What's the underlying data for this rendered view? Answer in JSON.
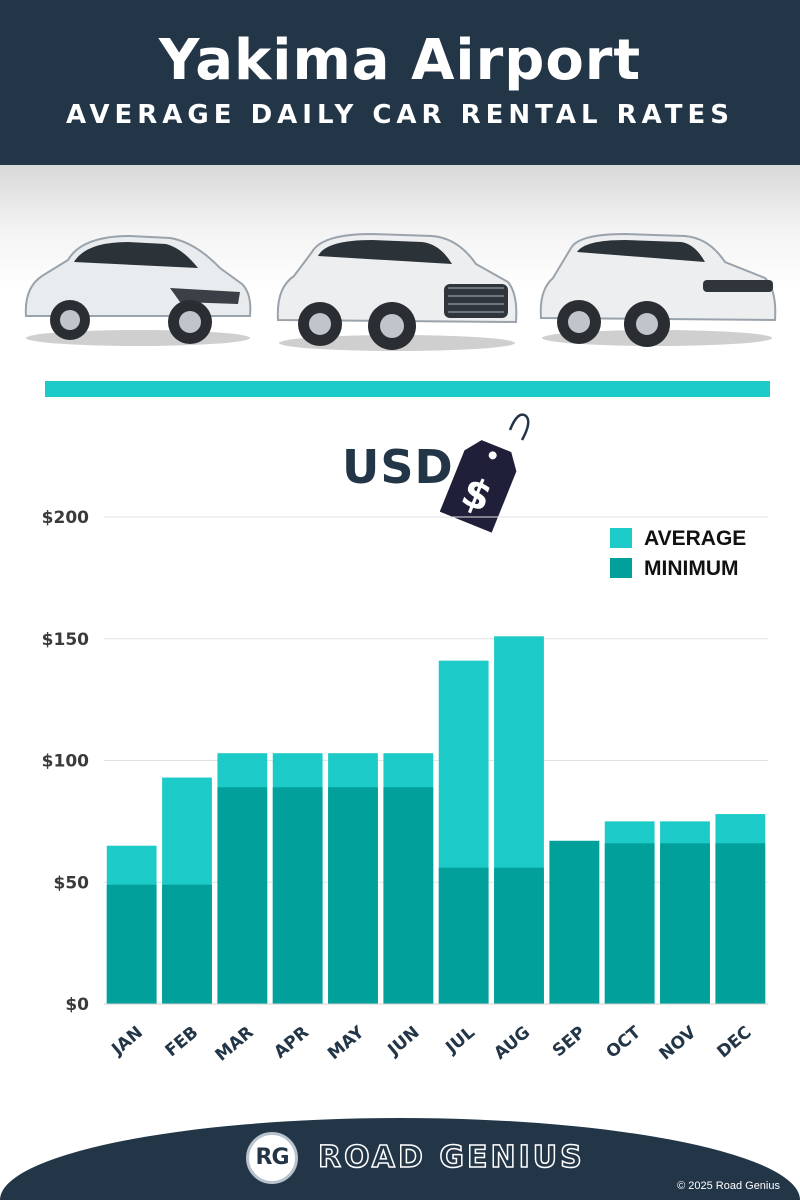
{
  "header": {
    "title": "Yakima Airport",
    "subtitle": "AVERAGE DAILY CAR RENTAL RATES"
  },
  "currency_label": "USD",
  "price_tag_symbol": "$",
  "colors": {
    "header_bg": "#233648",
    "accent": "#1ccac8",
    "average": "#1ccac8",
    "minimum": "#02a09a"
  },
  "chart_data": {
    "type": "bar",
    "stacked": "overlay",
    "categories": [
      "JAN",
      "FEB",
      "MAR",
      "APR",
      "MAY",
      "JUN",
      "JUL",
      "AUG",
      "SEP",
      "OCT",
      "NOV",
      "DEC"
    ],
    "series": [
      {
        "name": "AVERAGE",
        "color": "#1ccac8",
        "values": [
          65,
          93,
          103,
          103,
          103,
          103,
          141,
          151,
          67,
          75,
          75,
          78
        ]
      },
      {
        "name": "MINIMUM",
        "color": "#02a09a",
        "values": [
          49,
          49,
          89,
          89,
          89,
          89,
          56,
          56,
          67,
          66,
          66,
          66
        ]
      }
    ],
    "yticks": [
      "$0",
      "$50",
      "$100",
      "$150",
      "$200"
    ],
    "ytick_values": [
      0,
      50,
      100,
      150,
      200
    ],
    "ylim": [
      0,
      200
    ],
    "grid": true,
    "legend": "top-right"
  },
  "footer": {
    "logo_initials": "RG",
    "brand": "ROAD GENIUS",
    "copyright": "© 2025 Road Genius"
  }
}
